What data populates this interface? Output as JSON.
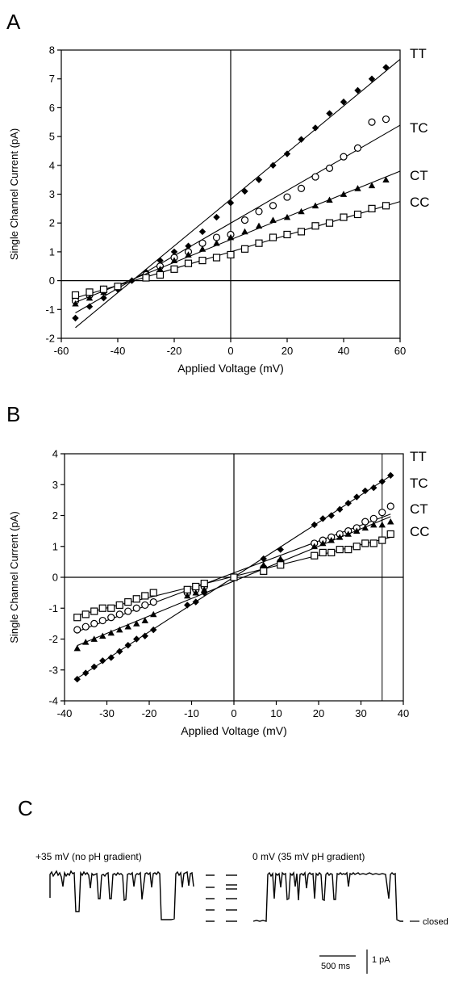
{
  "panels": {
    "a": "A",
    "b": "B",
    "c": "C"
  },
  "chart_data": [
    {
      "type": "scatter",
      "panel": "A",
      "xlabel": "Applied Voltage (mV)",
      "ylabel": "Single Channel Current (pA)",
      "xlim": [
        -60,
        60
      ],
      "ylim": [
        -2,
        8
      ],
      "xticks": [
        "-60",
        "-40",
        "-20",
        "0",
        "20",
        "40",
        "60"
      ],
      "yticks": [
        "-2",
        "-1",
        "0",
        "1",
        "2",
        "3",
        "4",
        "5",
        "6",
        "7",
        "8"
      ],
      "zero_lines": {
        "x": 0,
        "y": 0
      },
      "series": [
        {
          "name": "TT",
          "marker": "diamond-filled",
          "fit": [
            -55,
            60
          ],
          "x": [
            -55,
            -50,
            -45,
            -40,
            -35,
            -30,
            -25,
            -20,
            -15,
            -10,
            -5,
            0,
            5,
            10,
            15,
            20,
            25,
            30,
            35,
            40,
            45,
            50,
            55
          ],
          "y": [
            -1.3,
            -0.9,
            -0.6,
            -0.3,
            0.0,
            0.3,
            0.7,
            1.0,
            1.2,
            1.7,
            2.2,
            2.7,
            3.1,
            3.5,
            4.0,
            4.4,
            4.9,
            5.3,
            5.8,
            6.2,
            6.6,
            7.0,
            7.4
          ]
        },
        {
          "name": "TC",
          "marker": "circle-open",
          "fit": [
            -55,
            60
          ],
          "x": [
            -55,
            -50,
            -45,
            -40,
            -30,
            -25,
            -20,
            -15,
            -10,
            -5,
            0,
            5,
            10,
            15,
            20,
            25,
            30,
            35,
            40,
            45,
            50,
            55
          ],
          "y": [
            -0.7,
            -0.5,
            -0.3,
            -0.2,
            0.2,
            0.5,
            0.8,
            1.0,
            1.3,
            1.5,
            1.6,
            2.1,
            2.4,
            2.6,
            2.9,
            3.2,
            3.6,
            3.9,
            4.3,
            4.6,
            5.5,
            5.6
          ]
        },
        {
          "name": "CT",
          "marker": "triangle-filled",
          "fit": [
            -55,
            60
          ],
          "x": [
            -55,
            -50,
            -45,
            -40,
            -30,
            -25,
            -20,
            -15,
            -10,
            -5,
            0,
            5,
            10,
            15,
            20,
            25,
            30,
            35,
            40,
            45,
            50,
            55
          ],
          "y": [
            -0.8,
            -0.6,
            -0.4,
            -0.2,
            0.1,
            0.4,
            0.7,
            0.9,
            1.1,
            1.3,
            1.5,
            1.7,
            1.9,
            2.1,
            2.2,
            2.4,
            2.6,
            2.8,
            3.0,
            3.2,
            3.3,
            3.5
          ]
        },
        {
          "name": "CC",
          "marker": "square-open",
          "fit": [
            -55,
            60
          ],
          "x": [
            -55,
            -50,
            -45,
            -40,
            -30,
            -25,
            -20,
            -15,
            -10,
            -5,
            0,
            5,
            10,
            15,
            20,
            25,
            30,
            35,
            40,
            45,
            50,
            55
          ],
          "y": [
            -0.5,
            -0.4,
            -0.3,
            -0.2,
            0.1,
            0.2,
            0.4,
            0.6,
            0.7,
            0.8,
            0.9,
            1.1,
            1.3,
            1.5,
            1.6,
            1.7,
            1.9,
            2.0,
            2.2,
            2.3,
            2.5,
            2.6
          ]
        }
      ]
    },
    {
      "type": "scatter",
      "panel": "B",
      "xlabel": "Applied Voltage (mV)",
      "ylabel": "Single Channel Current (pA)",
      "xlim": [
        -40,
        40
      ],
      "ylim": [
        -4,
        4
      ],
      "xticks": [
        "-40",
        "-30",
        "-20",
        "-10",
        "0",
        "10",
        "20",
        "30",
        "40"
      ],
      "yticks": [
        "-4",
        "-3",
        "-2",
        "-1",
        "0",
        "1",
        "2",
        "3",
        "4"
      ],
      "zero_lines": {
        "x": 0,
        "y": 0
      },
      "ref_vline_x": 35,
      "series": [
        {
          "name": "TT",
          "marker": "diamond-filled",
          "fit": [
            -37,
            37
          ],
          "x": [
            -37,
            -35,
            -33,
            -31,
            -29,
            -27,
            -25,
            -23,
            -21,
            -19,
            -11,
            -9,
            -7,
            0,
            7,
            11,
            19,
            21,
            23,
            25,
            27,
            29,
            31,
            33,
            35,
            37
          ],
          "y": [
            -3.3,
            -3.1,
            -2.9,
            -2.7,
            -2.6,
            -2.4,
            -2.2,
            -2.0,
            -1.9,
            -1.7,
            -0.9,
            -0.8,
            -0.5,
            0.0,
            0.6,
            0.9,
            1.7,
            1.9,
            2.0,
            2.2,
            2.4,
            2.6,
            2.8,
            2.9,
            3.1,
            3.3
          ]
        },
        {
          "name": "TC",
          "marker": "circle-open",
          "fit": [
            -37,
            37
          ],
          "x": [
            -37,
            -35,
            -33,
            -31,
            -29,
            -27,
            -25,
            -23,
            -21,
            -19,
            -11,
            -9,
            -7,
            0,
            7,
            11,
            19,
            21,
            23,
            25,
            27,
            29,
            31,
            33,
            35,
            37
          ],
          "y": [
            -1.7,
            -1.6,
            -1.5,
            -1.4,
            -1.3,
            -1.2,
            -1.1,
            -1.0,
            -0.9,
            -0.8,
            -0.5,
            -0.4,
            -0.3,
            0.0,
            0.3,
            0.5,
            1.1,
            1.2,
            1.3,
            1.4,
            1.5,
            1.6,
            1.8,
            1.9,
            2.1,
            2.3
          ]
        },
        {
          "name": "CT",
          "marker": "triangle-filled",
          "fit": [
            -37,
            37
          ],
          "x": [
            -37,
            -35,
            -33,
            -31,
            -29,
            -27,
            -25,
            -23,
            -21,
            -19,
            -11,
            -9,
            -7,
            0,
            7,
            11,
            19,
            21,
            23,
            25,
            27,
            29,
            31,
            33,
            35,
            37
          ],
          "y": [
            -2.3,
            -2.1,
            -2.0,
            -1.9,
            -1.8,
            -1.7,
            -1.6,
            -1.5,
            -1.4,
            -1.2,
            -0.6,
            -0.5,
            -0.4,
            0.0,
            0.4,
            0.6,
            1.0,
            1.1,
            1.2,
            1.3,
            1.4,
            1.5,
            1.6,
            1.7,
            1.7,
            1.8
          ]
        },
        {
          "name": "CC",
          "marker": "square-open",
          "fit": [
            -37,
            37
          ],
          "x": [
            -37,
            -35,
            -33,
            -31,
            -29,
            -27,
            -25,
            -23,
            -21,
            -19,
            -11,
            -9,
            -7,
            0,
            7,
            11,
            19,
            21,
            23,
            25,
            27,
            29,
            31,
            33,
            35,
            37
          ],
          "y": [
            -1.3,
            -1.2,
            -1.1,
            -1.0,
            -1.0,
            -0.9,
            -0.8,
            -0.7,
            -0.6,
            -0.5,
            -0.4,
            -0.3,
            -0.2,
            0.0,
            0.2,
            0.4,
            0.7,
            0.8,
            0.8,
            0.9,
            0.9,
            1.0,
            1.1,
            1.1,
            1.2,
            1.4
          ]
        }
      ]
    }
  ],
  "traces": {
    "left_label": "+35 mV (no pH gradient)",
    "right_label": "0 mV (35 mV pH gradient)",
    "closed_label": "closed",
    "scale_time": "500 ms",
    "scale_current": "1 pA",
    "levels": [
      "open-1",
      "open-2",
      "open-3",
      "open-4",
      "open-5",
      "closed"
    ]
  }
}
